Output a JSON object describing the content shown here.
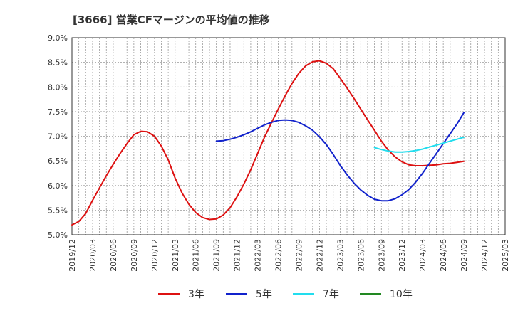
{
  "chart_data": {
    "type": "line",
    "title": "[3666]  営業CFマージンの平均値の推移",
    "xlabel": "",
    "ylabel": "",
    "ylim": [
      5.0,
      9.0
    ],
    "y_ticks": [
      "5.0%",
      "5.5%",
      "6.0%",
      "6.5%",
      "7.0%",
      "7.5%",
      "8.0%",
      "8.5%",
      "9.0%"
    ],
    "y_tick_values": [
      5.0,
      5.5,
      6.0,
      6.5,
      7.0,
      7.5,
      8.0,
      8.5,
      9.0
    ],
    "x_ticks": [
      "2019/12",
      "2020/03",
      "2020/06",
      "2020/09",
      "2020/12",
      "2021/03",
      "2021/06",
      "2021/09",
      "2021/12",
      "2022/03",
      "2022/06",
      "2022/09",
      "2022/12",
      "2023/03",
      "2023/06",
      "2023/09",
      "2023/12",
      "2024/03",
      "2024/06",
      "2024/09",
      "2024/12",
      "2025/03"
    ],
    "grid": true,
    "legend_position": "bottom",
    "series": [
      {
        "name": "3年",
        "color": "#dd1111",
        "points": [
          [
            "2019/12",
            5.2
          ],
          [
            "2020/01",
            5.27
          ],
          [
            "2020/02",
            5.43
          ],
          [
            "2020/03",
            5.7
          ],
          [
            "2020/04",
            5.95
          ],
          [
            "2020/05",
            6.2
          ],
          [
            "2020/06",
            6.43
          ],
          [
            "2020/07",
            6.65
          ],
          [
            "2020/08",
            6.85
          ],
          [
            "2020/09",
            7.03
          ],
          [
            "2020/10",
            7.1
          ],
          [
            "2020/11",
            7.09
          ],
          [
            "2020/12",
            7.0
          ],
          [
            "2021/01",
            6.8
          ],
          [
            "2021/02",
            6.52
          ],
          [
            "2021/03",
            6.15
          ],
          [
            "2021/04",
            5.85
          ],
          [
            "2021/05",
            5.62
          ],
          [
            "2021/06",
            5.45
          ],
          [
            "2021/07",
            5.35
          ],
          [
            "2021/08",
            5.31
          ],
          [
            "2021/09",
            5.32
          ],
          [
            "2021/10",
            5.4
          ],
          [
            "2021/11",
            5.55
          ],
          [
            "2021/12",
            5.77
          ],
          [
            "2022/01",
            6.03
          ],
          [
            "2022/02",
            6.32
          ],
          [
            "2022/03",
            6.65
          ],
          [
            "2022/04",
            6.98
          ],
          [
            "2022/05",
            7.27
          ],
          [
            "2022/06",
            7.55
          ],
          [
            "2022/07",
            7.82
          ],
          [
            "2022/08",
            8.07
          ],
          [
            "2022/09",
            8.28
          ],
          [
            "2022/10",
            8.43
          ],
          [
            "2022/11",
            8.51
          ],
          [
            "2022/12",
            8.53
          ],
          [
            "2023/01",
            8.48
          ],
          [
            "2023/02",
            8.37
          ],
          [
            "2023/03",
            8.18
          ],
          [
            "2023/04",
            7.98
          ],
          [
            "2023/05",
            7.77
          ],
          [
            "2023/06",
            7.55
          ],
          [
            "2023/07",
            7.33
          ],
          [
            "2023/08",
            7.12
          ],
          [
            "2023/09",
            6.9
          ],
          [
            "2023/10",
            6.72
          ],
          [
            "2023/11",
            6.58
          ],
          [
            "2023/12",
            6.48
          ],
          [
            "2024/01",
            6.42
          ],
          [
            "2024/02",
            6.4
          ],
          [
            "2024/03",
            6.4
          ],
          [
            "2024/04",
            6.41
          ],
          [
            "2024/05",
            6.42
          ],
          [
            "2024/06",
            6.44
          ],
          [
            "2024/07",
            6.45
          ],
          [
            "2024/08",
            6.47
          ],
          [
            "2024/09",
            6.49
          ]
        ]
      },
      {
        "name": "5年",
        "color": "#1122cc",
        "points": [
          [
            "2021/09",
            6.9
          ],
          [
            "2021/10",
            6.91
          ],
          [
            "2021/11",
            6.94
          ],
          [
            "2021/12",
            6.98
          ],
          [
            "2022/01",
            7.03
          ],
          [
            "2022/02",
            7.09
          ],
          [
            "2022/03",
            7.16
          ],
          [
            "2022/04",
            7.23
          ],
          [
            "2022/05",
            7.28
          ],
          [
            "2022/06",
            7.32
          ],
          [
            "2022/07",
            7.33
          ],
          [
            "2022/08",
            7.32
          ],
          [
            "2022/09",
            7.28
          ],
          [
            "2022/10",
            7.21
          ],
          [
            "2022/11",
            7.12
          ],
          [
            "2022/12",
            6.99
          ],
          [
            "2023/01",
            6.83
          ],
          [
            "2023/02",
            6.63
          ],
          [
            "2023/03",
            6.41
          ],
          [
            "2023/04",
            6.22
          ],
          [
            "2023/05",
            6.05
          ],
          [
            "2023/06",
            5.91
          ],
          [
            "2023/07",
            5.8
          ],
          [
            "2023/08",
            5.72
          ],
          [
            "2023/09",
            5.69
          ],
          [
            "2023/10",
            5.69
          ],
          [
            "2023/11",
            5.73
          ],
          [
            "2023/12",
            5.81
          ],
          [
            "2024/01",
            5.92
          ],
          [
            "2024/02",
            6.07
          ],
          [
            "2024/03",
            6.25
          ],
          [
            "2024/04",
            6.45
          ],
          [
            "2024/05",
            6.65
          ],
          [
            "2024/06",
            6.85
          ],
          [
            "2024/07",
            7.05
          ],
          [
            "2024/08",
            7.25
          ],
          [
            "2024/09",
            7.48
          ]
        ]
      },
      {
        "name": "7年",
        "color": "#22ddee",
        "points": [
          [
            "2023/08",
            6.77
          ],
          [
            "2023/09",
            6.73
          ],
          [
            "2023/10",
            6.7
          ],
          [
            "2023/11",
            6.68
          ],
          [
            "2023/12",
            6.68
          ],
          [
            "2024/01",
            6.69
          ],
          [
            "2024/02",
            6.71
          ],
          [
            "2024/03",
            6.74
          ],
          [
            "2024/04",
            6.78
          ],
          [
            "2024/05",
            6.82
          ],
          [
            "2024/06",
            6.86
          ],
          [
            "2024/07",
            6.9
          ],
          [
            "2024/08",
            6.94
          ],
          [
            "2024/09",
            6.98
          ]
        ]
      },
      {
        "name": "10年",
        "color": "#228822",
        "points": []
      }
    ]
  }
}
